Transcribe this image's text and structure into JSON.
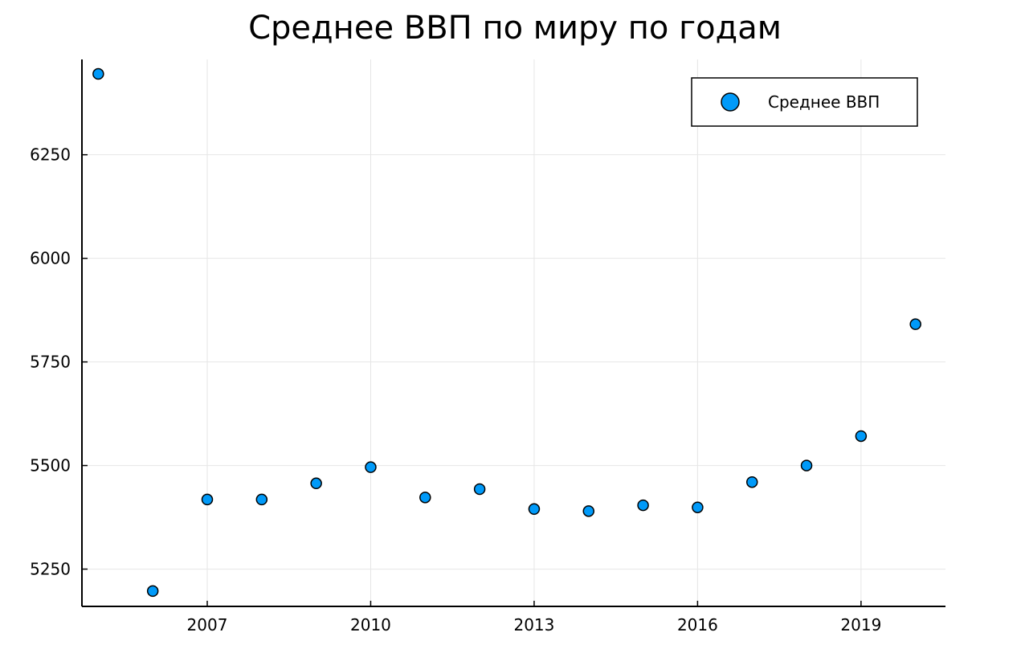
{
  "chart_data": {
    "type": "scatter",
    "title": "Среднее ВВП по миру по годам",
    "xlabel": "",
    "ylabel": "",
    "x": [
      2005,
      2006,
      2007,
      2008,
      2009,
      2010,
      2011,
      2012,
      2013,
      2014,
      2015,
      2016,
      2017,
      2018,
      2019,
      2020
    ],
    "series": [
      {
        "name": "Среднее ВВП",
        "color": "#009af9",
        "values": [
          6445,
          5197,
          5418,
          5418,
          5457,
          5496,
          5423,
          5443,
          5395,
          5390,
          5404,
          5399,
          5460,
          5500,
          5571,
          5841
        ]
      }
    ],
    "xlim": [
      2004.7,
      2020.55
    ],
    "ylim": [
      5160,
      6480
    ],
    "xticks": [
      2007,
      2010,
      2013,
      2016,
      2019
    ],
    "xtick_labels": [
      "2007",
      "2010",
      "2013",
      "2016",
      "2019"
    ],
    "yticks": [
      5250,
      5500,
      5750,
      6000,
      6250
    ],
    "ytick_labels": [
      "5250",
      "5500",
      "5750",
      "6000",
      "6250"
    ],
    "grid": true,
    "legend_position": "top-right"
  }
}
